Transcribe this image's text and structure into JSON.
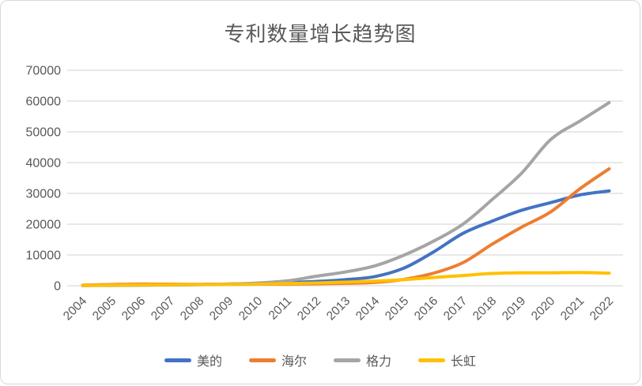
{
  "chart_data": {
    "type": "line",
    "title": "专利数量增长趋势图",
    "x": [
      "2004",
      "2005",
      "2006",
      "2007",
      "2008",
      "2009",
      "2010",
      "2011",
      "2012",
      "2013",
      "2014",
      "2015",
      "2016",
      "2017",
      "2018",
      "2019",
      "2020",
      "2021",
      "2022"
    ],
    "series": [
      {
        "name": "美的",
        "color": "#4472C4",
        "values": [
          100,
          150,
          250,
          300,
          400,
          550,
          700,
          1000,
          1400,
          2000,
          3000,
          5800,
          11000,
          17000,
          21000,
          24500,
          27000,
          29500,
          30800
        ]
      },
      {
        "name": "海尔",
        "color": "#ED7D31",
        "values": [
          200,
          400,
          550,
          500,
          450,
          500,
          500,
          550,
          650,
          800,
          1100,
          2100,
          4100,
          7500,
          13500,
          19000,
          24000,
          31500,
          38000
        ]
      },
      {
        "name": "格力",
        "color": "#A5A5A5",
        "values": [
          50,
          100,
          150,
          250,
          350,
          550,
          900,
          1600,
          3100,
          4500,
          6500,
          10000,
          14500,
          20000,
          28000,
          36500,
          47500,
          53500,
          59500
        ]
      },
      {
        "name": "长虹",
        "color": "#FFC000",
        "values": [
          100,
          200,
          300,
          350,
          400,
          450,
          500,
          700,
          900,
          1200,
          1500,
          2000,
          2700,
          3300,
          4000,
          4200,
          4200,
          4300,
          4100
        ]
      }
    ],
    "y_axis": {
      "min": 0,
      "max": 70000,
      "tick_interval": 10000,
      "tick_labels": [
        "0",
        "10000",
        "20000",
        "30000",
        "40000",
        "50000",
        "60000",
        "70000"
      ]
    },
    "legend": {
      "position": "bottom",
      "items": [
        "美的",
        "海尔",
        "格力",
        "长虹"
      ]
    },
    "grid": true,
    "xlabel": "",
    "ylabel": "",
    "colors": {
      "text": "#595959",
      "gridline": "#d9d9d9",
      "frame_border": "#d9d9d9",
      "background": "#ffffff"
    }
  }
}
